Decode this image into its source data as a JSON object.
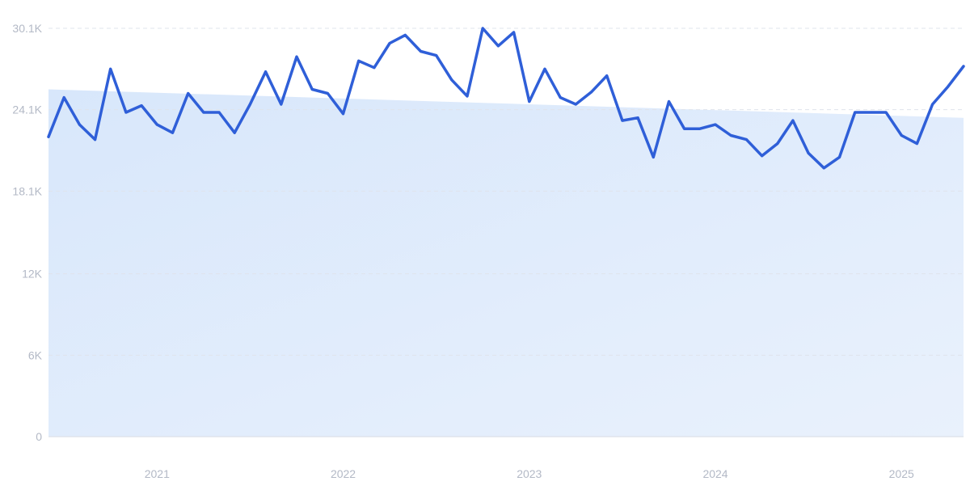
{
  "chart_data": {
    "type": "line",
    "title": "",
    "xlabel": "",
    "ylabel": "",
    "grid": true,
    "legend": "none",
    "x_ticks": [
      "2021",
      "2022",
      "2023",
      "2024",
      "2025"
    ],
    "y_ticks": [
      "0",
      "6K",
      "12K",
      "18.1K",
      "24.1K",
      "30.1K"
    ],
    "y_tick_values": [
      0,
      6000,
      12000,
      18100,
      24100,
      30100
    ],
    "ylim": [
      0,
      30100
    ],
    "xlim": [
      "2020-08",
      "2025-07"
    ],
    "colors": {
      "line": "#2f5fd8",
      "trend_fill": "#dbe9fb",
      "grid": "#dfe4ec",
      "tick_text": "#b3b9c6"
    },
    "series": [
      {
        "x": [
          "2020-08",
          "2020-09",
          "2020-10",
          "2020-11",
          "2020-12",
          "2021-01",
          "2021-02",
          "2021-03",
          "2021-04",
          "2021-05",
          "2021-06",
          "2021-07",
          "2021-08",
          "2021-09",
          "2021-10",
          "2021-11",
          "2021-12",
          "2022-01",
          "2022-02",
          "2022-03",
          "2022-04",
          "2022-05",
          "2022-06",
          "2022-07",
          "2022-08",
          "2022-09",
          "2022-10",
          "2022-11",
          "2022-12",
          "2023-01",
          "2023-02",
          "2023-03",
          "2023-04",
          "2023-05",
          "2023-06",
          "2023-07",
          "2023-08",
          "2023-09",
          "2023-10",
          "2023-11",
          "2023-12",
          "2024-01",
          "2024-02",
          "2024-03",
          "2024-04",
          "2024-05",
          "2024-06",
          "2024-07",
          "2024-08",
          "2024-09",
          "2024-10",
          "2024-11",
          "2024-12",
          "2025-01",
          "2025-02",
          "2025-03",
          "2025-04",
          "2025-05",
          "2025-06",
          "2025-07"
        ],
        "values": [
          22100,
          25000,
          23000,
          21900,
          27100,
          23900,
          24400,
          23000,
          22400,
          25300,
          23900,
          23900,
          22400,
          24500,
          26900,
          24500,
          28000,
          25600,
          25300,
          23800,
          27700,
          27200,
          29000,
          29600,
          28400,
          28100,
          26300,
          25100,
          30100,
          28800,
          29800,
          24700,
          27100,
          25000,
          24500,
          25400,
          26600,
          23300,
          23500,
          20600,
          24700,
          22700,
          22700,
          23000,
          22200,
          21900,
          20700,
          21600,
          23300,
          20900,
          19800,
          20600,
          23900,
          23900,
          23900,
          22200,
          21600,
          24500,
          25800,
          27300
        ]
      }
    ],
    "trend_band": {
      "start": 25600,
      "end": 23500
    }
  }
}
